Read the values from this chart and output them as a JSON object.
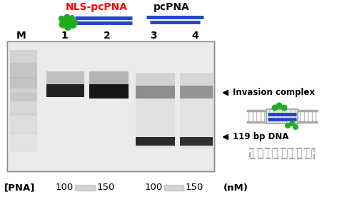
{
  "fig_width": 5.0,
  "fig_height": 2.83,
  "dpi": 100,
  "bg_color": "#ffffff",
  "title_nls": "NLS-pcPNA",
  "title_pna": "pcPNA",
  "lane_labels": [
    "M",
    "1",
    "2",
    "3",
    "4"
  ],
  "pna_conc": [
    "[PNA]",
    "100",
    "150",
    "100",
    "150",
    "(nM)"
  ],
  "band_dark": "#111111",
  "band_medium": "#555555",
  "band_light": "#999999"
}
